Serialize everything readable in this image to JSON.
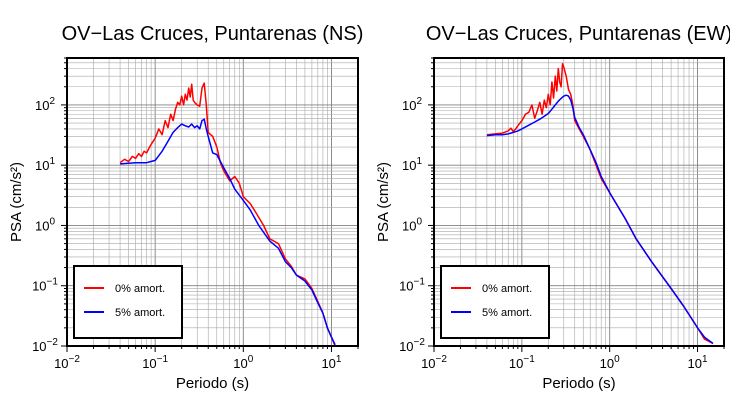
{
  "chart_data": [
    {
      "type": "line",
      "title": "OV−Las Cruces, Puntarenas (NS)",
      "xlabel": "Periodo (s)",
      "ylabel": "PSA (cm/s²)",
      "xscale": "log",
      "yscale": "log",
      "xlim": [
        0.01,
        20
      ],
      "ylim": [
        0.01,
        600
      ],
      "grid": true,
      "legend_position": "bottom-left",
      "x_ticks": [
        0.01,
        0.1,
        1,
        10
      ],
      "y_ticks": [
        0.01,
        0.1,
        1,
        10,
        100
      ],
      "series": [
        {
          "name": "0% amort.",
          "color": "#ff0000",
          "x": [
            0.04,
            0.045,
            0.05,
            0.055,
            0.06,
            0.065,
            0.07,
            0.075,
            0.08,
            0.085,
            0.09,
            0.095,
            0.1,
            0.11,
            0.12,
            0.13,
            0.14,
            0.15,
            0.16,
            0.17,
            0.18,
            0.19,
            0.2,
            0.21,
            0.22,
            0.23,
            0.24,
            0.25,
            0.26,
            0.27,
            0.28,
            0.3,
            0.32,
            0.34,
            0.36,
            0.38,
            0.4,
            0.45,
            0.5,
            0.55,
            0.6,
            0.7,
            0.8,
            0.9,
            1.0,
            1.2,
            1.4,
            1.7,
            2.0,
            2.5,
            3.0,
            3.5,
            4.0,
            5.0,
            6.0,
            7.0,
            8.0,
            9.0,
            10.0,
            11.0
          ],
          "y": [
            11,
            12.5,
            11.5,
            14,
            13,
            15.5,
            14,
            17,
            16,
            19,
            22,
            25,
            28,
            40,
            32,
            55,
            42,
            70,
            55,
            85,
            110,
            100,
            140,
            100,
            150,
            120,
            190,
            135,
            220,
            120,
            110,
            100,
            95,
            190,
            230,
            100,
            35,
            30,
            20,
            11,
            8,
            5.5,
            6.5,
            5,
            3,
            2.3,
            1.6,
            1.0,
            0.6,
            0.5,
            0.28,
            0.21,
            0.15,
            0.13,
            0.09,
            0.055,
            0.035,
            0.02,
            0.014,
            0.01
          ]
        },
        {
          "name": "5% amort.",
          "color": "#0000ff",
          "x": [
            0.04,
            0.05,
            0.06,
            0.07,
            0.08,
            0.09,
            0.1,
            0.12,
            0.14,
            0.16,
            0.18,
            0.2,
            0.22,
            0.24,
            0.26,
            0.28,
            0.3,
            0.32,
            0.34,
            0.36,
            0.38,
            0.4,
            0.45,
            0.5,
            0.6,
            0.7,
            0.8,
            1.0,
            1.2,
            1.5,
            2.0,
            2.5,
            3.0,
            3.5,
            4.0,
            5.0,
            6.0,
            7.0,
            8.0,
            9.0,
            10.0,
            11.0
          ],
          "y": [
            10.5,
            10.8,
            11,
            11,
            11,
            11.5,
            12,
            17,
            25,
            35,
            42,
            48,
            45,
            43,
            48,
            42,
            45,
            40,
            55,
            58,
            40,
            30,
            16,
            15,
            9,
            6,
            4,
            2.6,
            1.8,
            1.0,
            0.55,
            0.42,
            0.25,
            0.2,
            0.15,
            0.12,
            0.085,
            0.052,
            0.035,
            0.02,
            0.014,
            0.0105
          ]
        }
      ]
    },
    {
      "type": "line",
      "title": "OV−Las Cruces, Puntarenas (EW)",
      "xlabel": "Periodo (s)",
      "ylabel": "PSA (cm/s²)",
      "xscale": "log",
      "yscale": "log",
      "xlim": [
        0.01,
        20
      ],
      "ylim": [
        0.01,
        600
      ],
      "grid": true,
      "legend_position": "bottom-left",
      "x_ticks": [
        0.01,
        0.1,
        1,
        10
      ],
      "y_ticks": [
        0.01,
        0.1,
        1,
        10,
        100
      ],
      "series": [
        {
          "name": "0% amort.",
          "color": "#ff0000",
          "x": [
            0.04,
            0.05,
            0.06,
            0.07,
            0.075,
            0.08,
            0.085,
            0.09,
            0.1,
            0.11,
            0.12,
            0.13,
            0.14,
            0.15,
            0.16,
            0.17,
            0.18,
            0.19,
            0.2,
            0.21,
            0.22,
            0.23,
            0.24,
            0.25,
            0.26,
            0.27,
            0.28,
            0.29,
            0.3,
            0.32,
            0.34,
            0.36,
            0.38,
            0.4,
            0.45,
            0.5,
            0.6,
            0.7,
            0.8,
            1.0,
            1.5,
            2.0,
            3.0,
            5.0,
            7.0,
            10.0,
            12.0,
            15.0
          ],
          "y": [
            32,
            33,
            34,
            37,
            41,
            36,
            40,
            45,
            55,
            70,
            75,
            100,
            60,
            80,
            110,
            70,
            120,
            90,
            150,
            100,
            240,
            130,
            300,
            170,
            400,
            240,
            200,
            480,
            420,
            300,
            180,
            150,
            100,
            55,
            40,
            30,
            18,
            10,
            6,
            3.5,
            1.3,
            0.6,
            0.25,
            0.09,
            0.045,
            0.02,
            0.013,
            0.011
          ]
        },
        {
          "name": "5% amort.",
          "color": "#0000ff",
          "x": [
            0.04,
            0.05,
            0.06,
            0.07,
            0.08,
            0.09,
            0.1,
            0.12,
            0.14,
            0.16,
            0.18,
            0.2,
            0.22,
            0.24,
            0.26,
            0.28,
            0.3,
            0.32,
            0.34,
            0.36,
            0.38,
            0.4,
            0.45,
            0.5,
            0.6,
            0.7,
            0.8,
            1.0,
            1.5,
            2.0,
            3.0,
            5.0,
            7.0,
            10.0,
            12.0,
            15.0
          ],
          "y": [
            31,
            32,
            32,
            33,
            35,
            37,
            40,
            46,
            52,
            58,
            65,
            72,
            85,
            100,
            115,
            128,
            140,
            145,
            140,
            120,
            90,
            62,
            42,
            32,
            18,
            11,
            6.5,
            3.5,
            1.3,
            0.6,
            0.25,
            0.09,
            0.045,
            0.02,
            0.014,
            0.011
          ]
        }
      ]
    }
  ]
}
